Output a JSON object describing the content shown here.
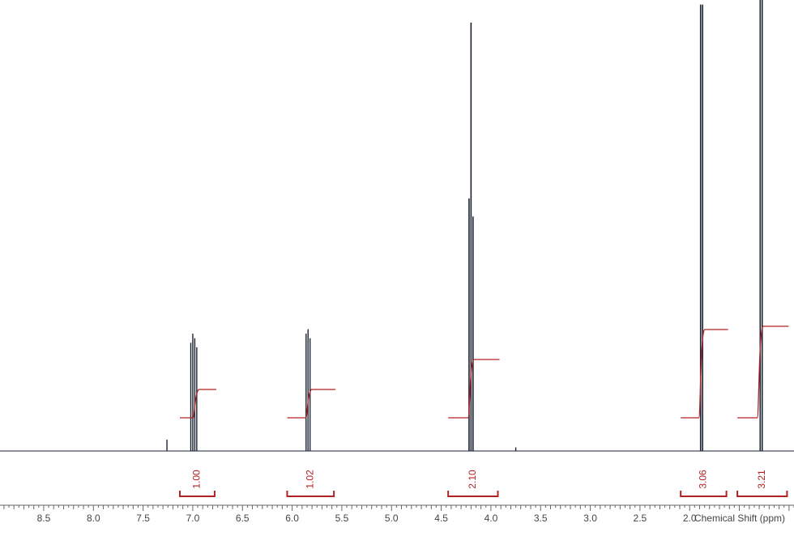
{
  "chart_data": {
    "type": "line",
    "xlabel": "Chemical Shift (ppm)",
    "ylabel": "",
    "title": "",
    "x_reversed": true,
    "xlim": [
      8.94,
      0.95
    ],
    "ylim": [
      0,
      1.0
    ],
    "ticks": [
      "8.5",
      "8.0",
      "7.5",
      "7.0",
      "6.5",
      "6.0",
      "5.5",
      "5.0",
      "4.5",
      "4.0",
      "3.5",
      "3.0",
      "2.5",
      "2.0"
    ],
    "peaks": [
      {
        "x": 7.26,
        "height": 0.025
      },
      {
        "x": 7.02,
        "height": 0.24
      },
      {
        "x": 7.0,
        "height": 0.26
      },
      {
        "x": 6.98,
        "height": 0.25
      },
      {
        "x": 6.96,
        "height": 0.23
      },
      {
        "x": 5.86,
        "height": 0.26
      },
      {
        "x": 5.84,
        "height": 0.27
      },
      {
        "x": 5.82,
        "height": 0.25
      },
      {
        "x": 4.22,
        "height": 0.56
      },
      {
        "x": 4.2,
        "height": 0.95
      },
      {
        "x": 4.18,
        "height": 0.52
      },
      {
        "x": 3.75,
        "height": 0.008
      },
      {
        "x": 1.89,
        "height": 0.99
      },
      {
        "x": 1.87,
        "height": 0.99
      },
      {
        "x": 1.29,
        "height": 1.0
      },
      {
        "x": 1.27,
        "height": 1.0
      }
    ],
    "integrals": [
      {
        "label": "1.00",
        "from": 7.13,
        "to": 6.78,
        "step": 0.175
      },
      {
        "label": "1.02",
        "from": 6.05,
        "to": 5.58,
        "step": 0.175
      },
      {
        "label": "2.10",
        "from": 4.43,
        "to": 3.93,
        "step": 0.36
      },
      {
        "label": "3.06",
        "from": 2.09,
        "to": 1.63,
        "step": 0.545
      },
      {
        "label": "3.21",
        "from": 1.52,
        "to": 1.02,
        "step": 0.565
      }
    ],
    "colors": {
      "spectrum": "#1b2233",
      "integral": "#b22222",
      "axis": "#666666"
    }
  }
}
